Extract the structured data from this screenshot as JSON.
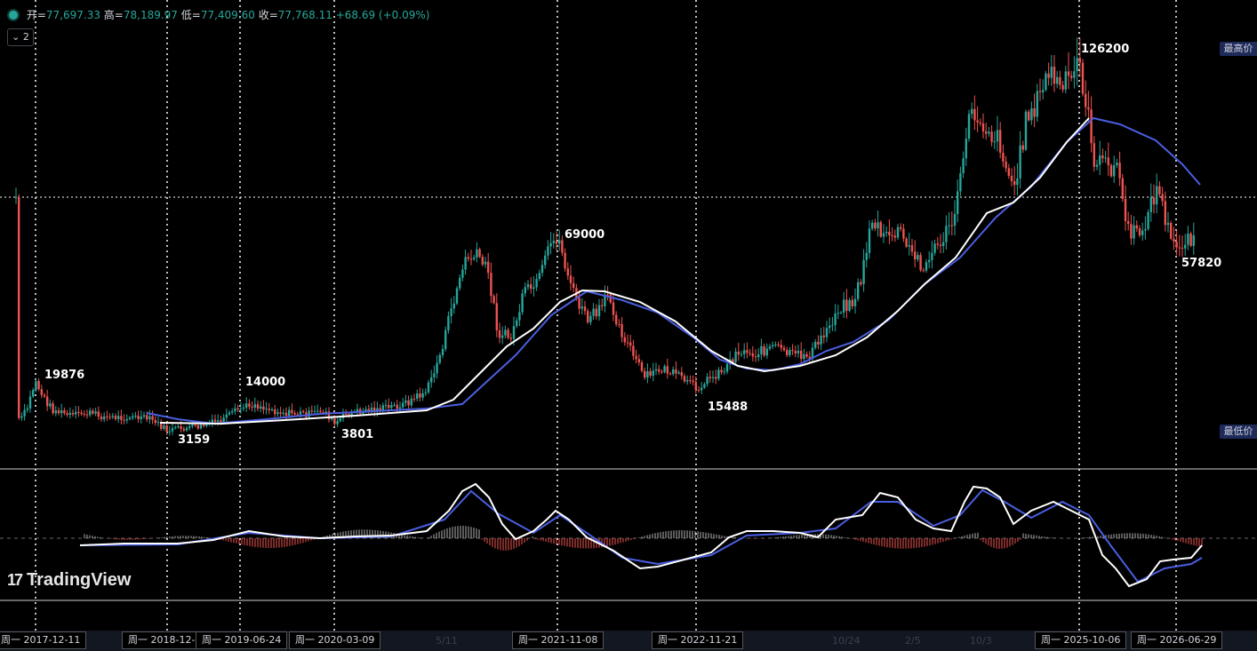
{
  "legend": {
    "open_label": "开=",
    "open": "77,697.33",
    "high_label": "高=",
    "high": "78,189.97",
    "low_label": "低=",
    "low": "77,409.60",
    "close_label": "收=",
    "close": "77,768.11",
    "change": "+68.69 (+0.09%)"
  },
  "collapse_button": "2",
  "badges": {
    "highest": "最高价",
    "lowest": "最低价"
  },
  "pivots": {
    "p1": "19876",
    "p2": "3159",
    "p3": "14000",
    "p4": "3801",
    "p5": "69000",
    "p6": "15488",
    "p7": "126200",
    "p8": "57820"
  },
  "logo_text": "TradingView",
  "time_axis": {
    "t1": "周一 2017-12-11",
    "t2": "周一 2018-12-",
    "t3": "周一 2019-06-24",
    "t4": "周一 2020-03-09",
    "t5": "周一 2021-11-08",
    "t6": "周一 2022-11-21",
    "t7": "周一 2025-10-06",
    "t8": "周一 2026-06-29"
  },
  "colors": {
    "up": "#26a69a",
    "down": "#ef5350",
    "ma_white": "#ffffff",
    "ma_blue": "#4a5ee0",
    "bg": "#000000"
  }
}
